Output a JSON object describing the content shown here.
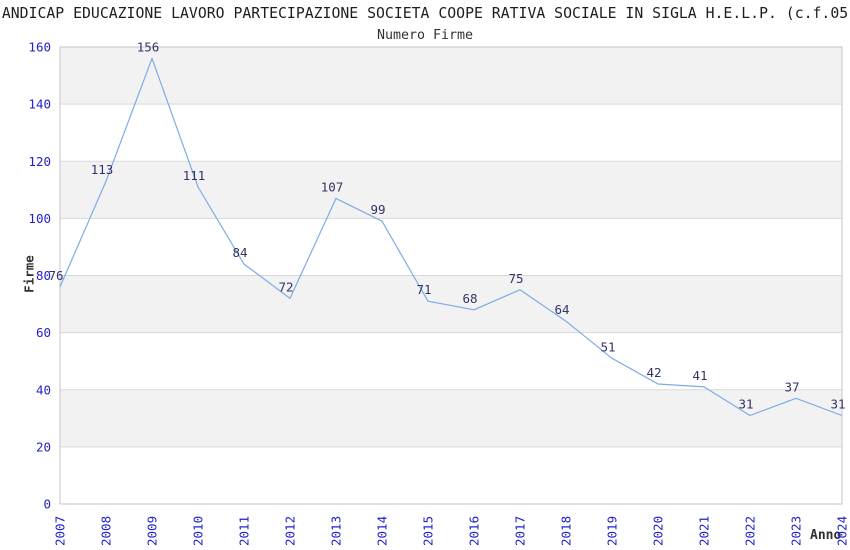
{
  "header": {
    "title": "ANDICAP EDUCAZIONE LAVORO PARTECIPAZIONE SOCIETA COOPE RATIVA SOCIALE IN SIGLA H.E.L.P. (c.f.05",
    "subtitle": "Numero Firme"
  },
  "chart_data": {
    "type": "line",
    "title": "Numero Firme",
    "xlabel": "Anno",
    "ylabel": "Firme",
    "categories": [
      "2007",
      "2008",
      "2009",
      "2010",
      "2011",
      "2012",
      "2013",
      "2014",
      "2015",
      "2016",
      "2017",
      "2018",
      "2019",
      "2020",
      "2021",
      "2022",
      "2023",
      "2024"
    ],
    "values": [
      76,
      113,
      156,
      111,
      84,
      72,
      107,
      99,
      71,
      68,
      75,
      64,
      51,
      42,
      41,
      31,
      37,
      31
    ],
    "ylim": [
      0,
      160
    ],
    "yticks": [
      0,
      20,
      40,
      60,
      80,
      100,
      120,
      140,
      160
    ],
    "ytick_step": 20,
    "grid": "alternating-horizontal-bands",
    "legend_position": "none",
    "point_labels_shown": true,
    "colors": {
      "line": "#7fabe3",
      "point_label": "#333366",
      "tick_label": "#2222cc",
      "band": "#f2f2f2",
      "grid_line": "#d9d9d9",
      "axis_line": "#c6c6c6",
      "title_text": "#1e1e1e",
      "axis_title_text": "#303030"
    }
  }
}
